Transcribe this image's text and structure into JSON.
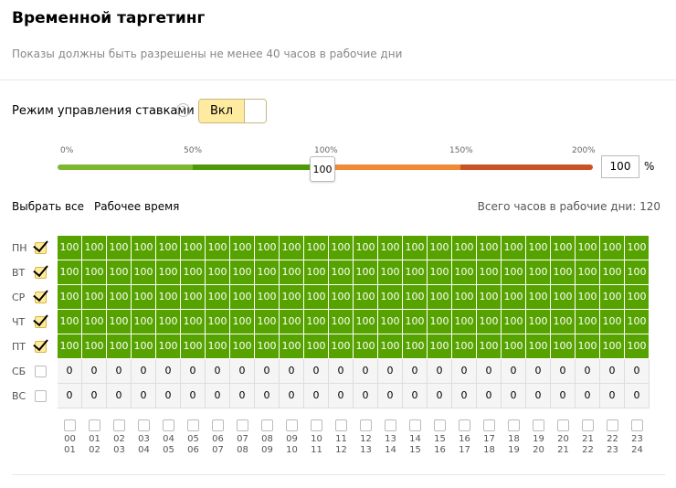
{
  "header": {
    "title": "Временной таргетинг",
    "subtitle": "Показы должны быть разрешены не менее 40 часов в рабочие дни"
  },
  "bid_mode": {
    "label": "Режим управления ставками",
    "help_icon": "?",
    "toggle_label": "Вкл",
    "toggle_state": "on"
  },
  "slider": {
    "ticks": [
      "0%",
      "50%",
      "100%",
      "150%",
      "200%"
    ],
    "value": 100,
    "handle_value": "100",
    "input_value": "100",
    "unit": "%",
    "colors": {
      "low": "#7cb82f",
      "mid": "#4e9a06",
      "high": "#f08a38",
      "max": "#c95324"
    }
  },
  "controls": {
    "select_all": "Выбрать все",
    "work_time": "Рабочее время",
    "total_hours": "Всего часов в рабочие дни: 120"
  },
  "days": [
    {
      "label": "ПН",
      "checked": true
    },
    {
      "label": "ВТ",
      "checked": true
    },
    {
      "label": "СР",
      "checked": true
    },
    {
      "label": "ЧТ",
      "checked": true
    },
    {
      "label": "ПТ",
      "checked": true
    },
    {
      "label": "СБ",
      "checked": false
    },
    {
      "label": "ВС",
      "checked": false
    }
  ],
  "grid_values": [
    [
      "100",
      "100",
      "100",
      "100",
      "100",
      "100",
      "100",
      "100",
      "100",
      "100",
      "100",
      "100",
      "100",
      "100",
      "100",
      "100",
      "100",
      "100",
      "100",
      "100",
      "100",
      "100",
      "100",
      "100"
    ],
    [
      "100",
      "100",
      "100",
      "100",
      "100",
      "100",
      "100",
      "100",
      "100",
      "100",
      "100",
      "100",
      "100",
      "100",
      "100",
      "100",
      "100",
      "100",
      "100",
      "100",
      "100",
      "100",
      "100",
      "100"
    ],
    [
      "100",
      "100",
      "100",
      "100",
      "100",
      "100",
      "100",
      "100",
      "100",
      "100",
      "100",
      "100",
      "100",
      "100",
      "100",
      "100",
      "100",
      "100",
      "100",
      "100",
      "100",
      "100",
      "100",
      "100"
    ],
    [
      "100",
      "100",
      "100",
      "100",
      "100",
      "100",
      "100",
      "100",
      "100",
      "100",
      "100",
      "100",
      "100",
      "100",
      "100",
      "100",
      "100",
      "100",
      "100",
      "100",
      "100",
      "100",
      "100",
      "100"
    ],
    [
      "100",
      "100",
      "100",
      "100",
      "100",
      "100",
      "100",
      "100",
      "100",
      "100",
      "100",
      "100",
      "100",
      "100",
      "100",
      "100",
      "100",
      "100",
      "100",
      "100",
      "100",
      "100",
      "100",
      "100"
    ],
    [
      "0",
      "0",
      "0",
      "0",
      "0",
      "0",
      "0",
      "0",
      "0",
      "0",
      "0",
      "0",
      "0",
      "0",
      "0",
      "0",
      "0",
      "0",
      "0",
      "0",
      "0",
      "0",
      "0",
      "0"
    ],
    [
      "0",
      "0",
      "0",
      "0",
      "0",
      "0",
      "0",
      "0",
      "0",
      "0",
      "0",
      "0",
      "0",
      "0",
      "0",
      "0",
      "0",
      "0",
      "0",
      "0",
      "0",
      "0",
      "0",
      "0"
    ]
  ],
  "hours": [
    {
      "from": "00",
      "to": "01"
    },
    {
      "from": "01",
      "to": "02"
    },
    {
      "from": "02",
      "to": "03"
    },
    {
      "from": "03",
      "to": "04"
    },
    {
      "from": "04",
      "to": "05"
    },
    {
      "from": "05",
      "to": "06"
    },
    {
      "from": "06",
      "to": "07"
    },
    {
      "from": "07",
      "to": "08"
    },
    {
      "from": "08",
      "to": "09"
    },
    {
      "from": "09",
      "to": "10"
    },
    {
      "from": "10",
      "to": "11"
    },
    {
      "from": "11",
      "to": "12"
    },
    {
      "from": "12",
      "to": "13"
    },
    {
      "from": "13",
      "to": "14"
    },
    {
      "from": "14",
      "to": "15"
    },
    {
      "from": "15",
      "to": "16"
    },
    {
      "from": "16",
      "to": "17"
    },
    {
      "from": "17",
      "to": "18"
    },
    {
      "from": "18",
      "to": "19"
    },
    {
      "from": "19",
      "to": "20"
    },
    {
      "from": "20",
      "to": "21"
    },
    {
      "from": "21",
      "to": "22"
    },
    {
      "from": "22",
      "to": "23"
    },
    {
      "from": "23",
      "to": "24"
    }
  ],
  "accent_colors": {
    "cell_on": "#56a300",
    "checkbox_checked": "#ffeb9c",
    "toggle_on": "#ffeba0"
  }
}
